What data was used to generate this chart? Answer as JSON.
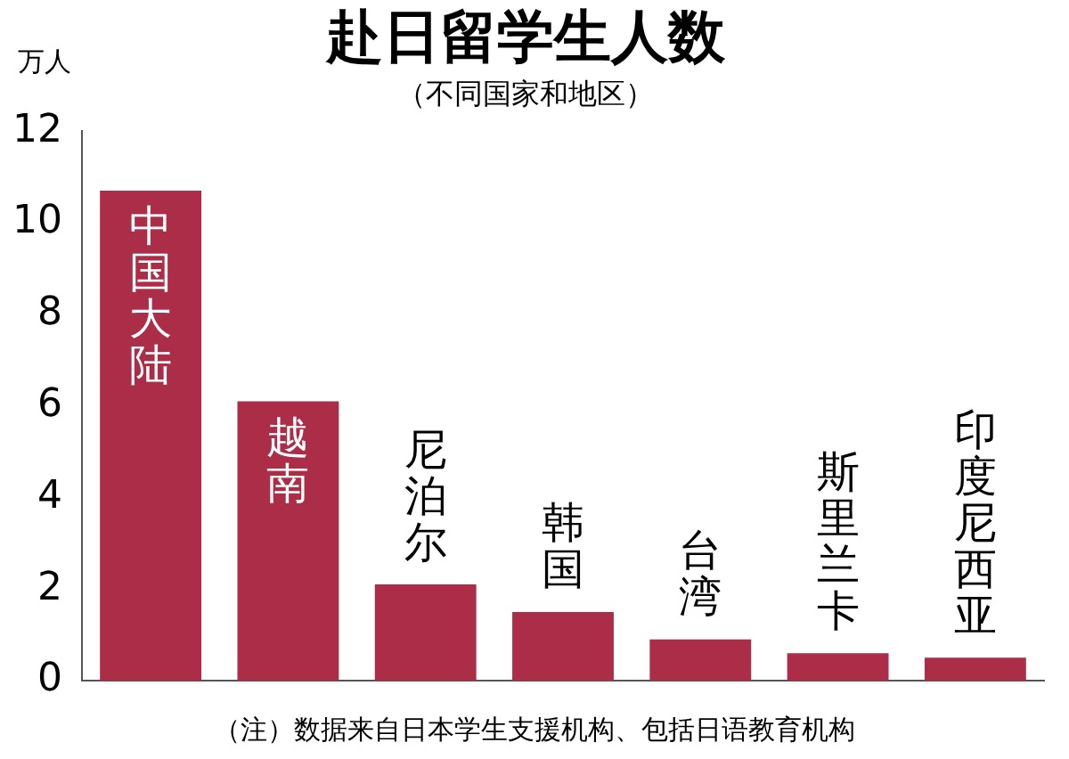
{
  "chart_data": {
    "type": "bar",
    "title": "赴日留学生人数",
    "subtitle": "（不同国家和地区）",
    "ylabel": "万人",
    "categories": [
      "中国大陆",
      "越南",
      "尼泊尔",
      "韩国",
      "台湾",
      "斯里兰卡",
      "印度尼西亚"
    ],
    "values": [
      10.7,
      6.1,
      2.1,
      1.5,
      0.9,
      0.6,
      0.5
    ],
    "color": "#ac2d47",
    "ylim": [
      0,
      12
    ],
    "yticks": [
      0,
      2,
      4,
      6,
      8,
      10,
      12
    ],
    "grid": false,
    "legend": false,
    "annotations": [
      "（注）数据来自日本学生支援机构、包括日语教育机构"
    ]
  }
}
